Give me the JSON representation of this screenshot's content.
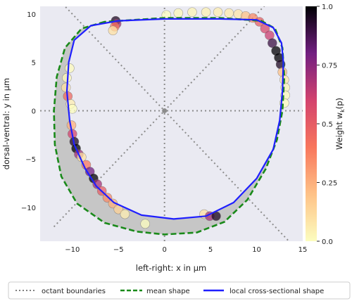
{
  "chart_data": {
    "type": "scatter",
    "xlabel": "left-right: x in μm",
    "ylabel": "dorsal-ventral: y in μm",
    "xlim": [
      -13.5,
      15
    ],
    "ylim": [
      -13.5,
      10.8
    ],
    "xticks": [
      "−10",
      "−5",
      "0",
      "5",
      "10",
      "15"
    ],
    "xtick_values": [
      -10,
      -5,
      0,
      5,
      10,
      15
    ],
    "yticks": [
      "10",
      "5",
      "0",
      "−5",
      "−10"
    ],
    "ytick_values": [
      10,
      5,
      0,
      -5,
      -10
    ],
    "grid": false,
    "background": "#eaeaf2",
    "colorbar": {
      "label": "Weight w",
      "label_sub": "k",
      "label_tail": "(p)",
      "ticks": [
        "1.0",
        "0.75",
        "0.5",
        "0.25",
        "0.0"
      ],
      "tick_values": [
        1.0,
        0.75,
        0.5,
        0.25,
        0.0
      ],
      "range": [
        0,
        1
      ],
      "colormap": "magma_r"
    },
    "legend": {
      "placement": "below",
      "entries": [
        {
          "label": "octant boundaries",
          "color": "#7f7f7f",
          "style": "dotted"
        },
        {
          "label": "mean shape",
          "color": "#1a8a1a",
          "style": "dashed"
        },
        {
          "label": "local cross-sectional shape",
          "color": "#1f1fff",
          "style": "solid"
        }
      ]
    },
    "octant_boundaries": [
      {
        "from": [
          -12,
          -12
        ],
        "to": [
          11,
          11
        ]
      },
      {
        "from": [
          -12,
          12
        ],
        "to": [
          14,
          -14
        ]
      },
      {
        "from": [
          -13.5,
          0
        ],
        "to": [
          15,
          0
        ]
      },
      {
        "from": [
          0,
          -13.5
        ],
        "to": [
          0,
          10.8
        ]
      }
    ],
    "mean_shape": [
      [
        -6.5,
        9.2
      ],
      [
        -9.0,
        8.5
      ],
      [
        -10.8,
        6.5
      ],
      [
        -11.7,
        3.5
      ],
      [
        -12.0,
        0
      ],
      [
        -11.9,
        -3.5
      ],
      [
        -11.2,
        -6.8
      ],
      [
        -9.5,
        -9.6
      ],
      [
        -6.5,
        -11.6
      ],
      [
        -3.0,
        -12.5
      ],
      [
        0,
        -12.8
      ],
      [
        3.5,
        -12.6
      ],
      [
        6.5,
        -11.5
      ],
      [
        9.0,
        -9.2
      ],
      [
        11.0,
        -6.0
      ],
      [
        12.2,
        -3.0
      ],
      [
        12.8,
        0
      ],
      [
        13.0,
        3.5
      ],
      [
        12.8,
        6.5
      ],
      [
        12.0,
        8.5
      ],
      [
        10.5,
        9.3
      ],
      [
        6.0,
        9.6
      ],
      [
        0,
        9.6
      ],
      [
        -6.5,
        9.2
      ]
    ],
    "local_shape": [
      [
        -5.0,
        9.3
      ],
      [
        -8.0,
        8.8
      ],
      [
        -9.8,
        7.3
      ],
      [
        -10.4,
        5.0
      ],
      [
        -10.6,
        2.0
      ],
      [
        -10.3,
        -1.0
      ],
      [
        -9.8,
        -3.5
      ],
      [
        -8.6,
        -6.0
      ],
      [
        -7.4,
        -7.8
      ],
      [
        -5.5,
        -9.5
      ],
      [
        -2.5,
        -10.8
      ],
      [
        1.0,
        -11.2
      ],
      [
        4.5,
        -10.9
      ],
      [
        7.5,
        -9.5
      ],
      [
        10.0,
        -7.0
      ],
      [
        11.8,
        -4.0
      ],
      [
        12.5,
        -1.0
      ],
      [
        12.8,
        2.0
      ],
      [
        12.9,
        5.0
      ],
      [
        12.7,
        7.0
      ],
      [
        11.8,
        8.6
      ],
      [
        10.0,
        9.4
      ],
      [
        6.0,
        9.5
      ],
      [
        0,
        9.5
      ],
      [
        -5.0,
        9.3
      ]
    ],
    "weights_series": [
      {
        "points": [
          [
            0.2,
            9.9
          ],
          [
            1.5,
            10.1
          ],
          [
            3.0,
            10.2
          ],
          [
            4.5,
            10.2
          ],
          [
            5.8,
            10.2
          ],
          [
            7.0,
            10.1
          ],
          [
            8.0,
            10.0
          ]
        ],
        "weights": [
          0.0,
          0.02,
          0.03,
          0.04,
          0.05,
          0.06,
          0.08
        ]
      },
      {
        "points": [
          [
            8.8,
            9.8
          ],
          [
            9.6,
            9.6
          ],
          [
            10.3,
            9.2
          ],
          [
            10.9,
            8.5
          ],
          [
            11.4,
            7.8
          ]
        ],
        "weights": [
          0.2,
          0.35,
          0.5,
          0.58,
          0.62
        ]
      },
      {
        "points": [
          [
            11.7,
            7.0
          ],
          [
            12.1,
            6.2
          ],
          [
            12.4,
            5.5
          ],
          [
            12.6,
            4.8
          ]
        ],
        "weights": [
          0.9,
          1.0,
          1.0,
          0.95
        ]
      },
      {
        "points": [
          [
            12.8,
            4.0
          ],
          [
            13.0,
            3.2
          ],
          [
            13.1,
            2.4
          ],
          [
            13.1,
            1.6
          ],
          [
            13.0,
            0.8
          ]
        ],
        "weights": [
          0.2,
          0.08,
          0.03,
          0.01,
          0.0
        ]
      },
      {
        "points": [
          [
            -5.3,
            9.3
          ],
          [
            -5.2,
            9.0
          ],
          [
            -5.4,
            8.7
          ],
          [
            -5.6,
            8.3
          ]
        ],
        "weights": [
          0.95,
          0.7,
          0.4,
          0.1
        ]
      },
      {
        "points": [
          [
            -10.3,
            4.4
          ],
          [
            -10.6,
            3.4
          ],
          [
            -10.7,
            2.4
          ],
          [
            -10.5,
            1.5
          ],
          [
            -10.2,
            0.7
          ],
          [
            -10.0,
            0.2
          ]
        ],
        "weights": [
          0.01,
          0.02,
          0.1,
          0.45,
          0.05,
          0.0
        ]
      },
      {
        "points": [
          [
            -10.1,
            -1.5
          ],
          [
            -10.0,
            -2.4
          ],
          [
            -9.8,
            -3.2
          ],
          [
            -9.6,
            -3.9
          ],
          [
            -9.3,
            -4.5
          ],
          [
            -9.0,
            -4.8
          ]
        ],
        "weights": [
          0.25,
          0.6,
          0.95,
          1.0,
          0.7,
          0.1
        ]
      },
      {
        "points": [
          [
            -8.5,
            -5.6
          ],
          [
            -8.1,
            -6.3
          ],
          [
            -7.7,
            -7.0
          ],
          [
            -7.3,
            -7.6
          ],
          [
            -6.8,
            -8.3
          ],
          [
            -6.2,
            -9.0
          ],
          [
            -5.6,
            -9.6
          ],
          [
            -5.0,
            -10.2
          ],
          [
            -4.3,
            -10.7
          ]
        ],
        "weights": [
          0.4,
          0.8,
          1.0,
          0.7,
          0.5,
          0.35,
          0.25,
          0.15,
          0.05
        ]
      },
      {
        "points": [
          [
            4.3,
            -10.7
          ],
          [
            4.9,
            -10.9
          ],
          [
            5.6,
            -10.9
          ]
        ],
        "weights": [
          0.1,
          0.7,
          0.95
        ]
      },
      {
        "points": [
          [
            -2.1,
            -11.7
          ]
        ],
        "weights": [
          0.0
        ]
      }
    ]
  }
}
